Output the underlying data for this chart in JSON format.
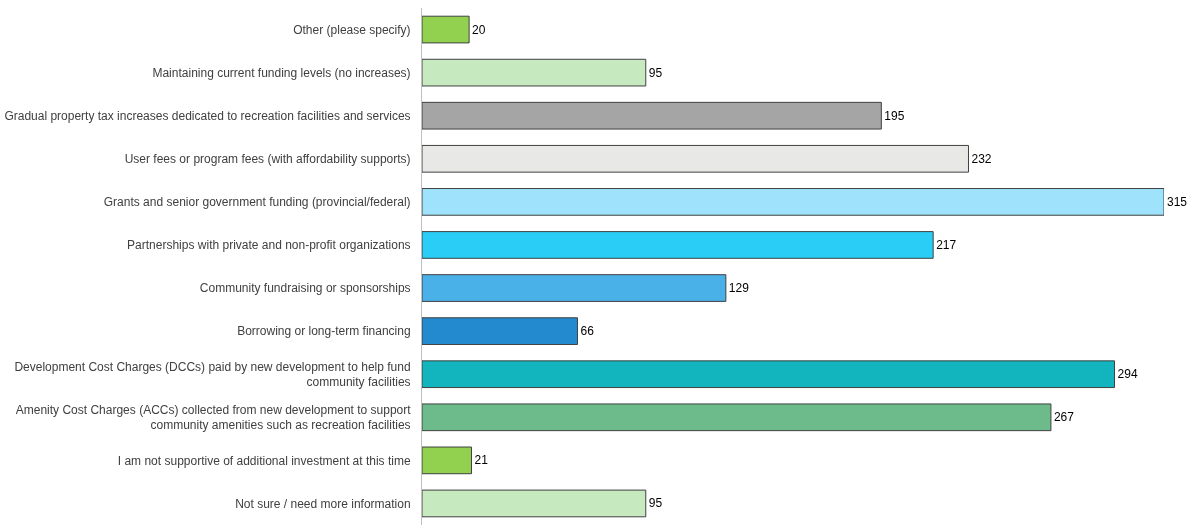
{
  "chart_data": {
    "type": "bar",
    "orientation": "horizontal",
    "data_labels": true,
    "categories": [
      "Other (please specify)",
      "Maintaining current funding levels (no increases)",
      "Gradual property tax increases dedicated to recreation facilities and services",
      "User fees or program fees (with affordability supports)",
      "Grants and senior government funding (provincial/federal)",
      "Partnerships with private and non-profit organizations",
      "Community fundraising or sponsorships",
      "Borrowing or long-term financing",
      "Development Cost Charges (DCCs) paid by new development to help fund\ncommunity facilities",
      "Amenity Cost Charges (ACCs) collected from new development to support\ncommunity amenities such as recreation facilities",
      "I am not supportive of additional investment at this time",
      "Not sure / need more information"
    ],
    "values": [
      20,
      95,
      195,
      232,
      315,
      217,
      129,
      66,
      294,
      267,
      21,
      95
    ],
    "colors": [
      "#92d050",
      "#c6e9bf",
      "#a5a5a5",
      "#e8e8e6",
      "#9ee3fb",
      "#29cdf5",
      "#4ab0e8",
      "#238ad0",
      "#12b5bd",
      "#6dbb8a",
      "#92d050",
      "#c6e9bf"
    ]
  }
}
